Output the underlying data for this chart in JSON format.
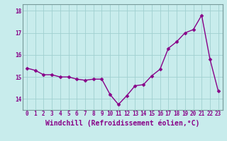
{
  "x": [
    0,
    1,
    2,
    3,
    4,
    5,
    6,
    7,
    8,
    9,
    10,
    11,
    12,
    13,
    14,
    15,
    16,
    17,
    18,
    19,
    20,
    21,
    22,
    23
  ],
  "y": [
    15.4,
    15.3,
    15.1,
    15.1,
    15.0,
    15.0,
    14.9,
    14.85,
    14.9,
    14.9,
    14.2,
    13.75,
    14.15,
    14.6,
    14.65,
    15.05,
    15.35,
    16.3,
    16.6,
    17.0,
    17.15,
    17.8,
    15.8,
    14.35
  ],
  "line_color": "#880088",
  "marker": "D",
  "marker_size": 2.5,
  "background_color": "#c8ecec",
  "grid_color": "#a0d0d0",
  "xlabel": "Windchill (Refroidissement éolien,°C)",
  "ylim": [
    13.5,
    18.3
  ],
  "xlim": [
    -0.5,
    23.5
  ],
  "yticks": [
    14,
    15,
    16,
    17,
    18
  ],
  "xticks": [
    0,
    1,
    2,
    3,
    4,
    5,
    6,
    7,
    8,
    9,
    10,
    11,
    12,
    13,
    14,
    15,
    16,
    17,
    18,
    19,
    20,
    21,
    22,
    23
  ],
  "tick_fontsize": 5.5,
  "xlabel_fontsize": 7.0,
  "spine_color": "#779999",
  "linewidth": 1.0
}
